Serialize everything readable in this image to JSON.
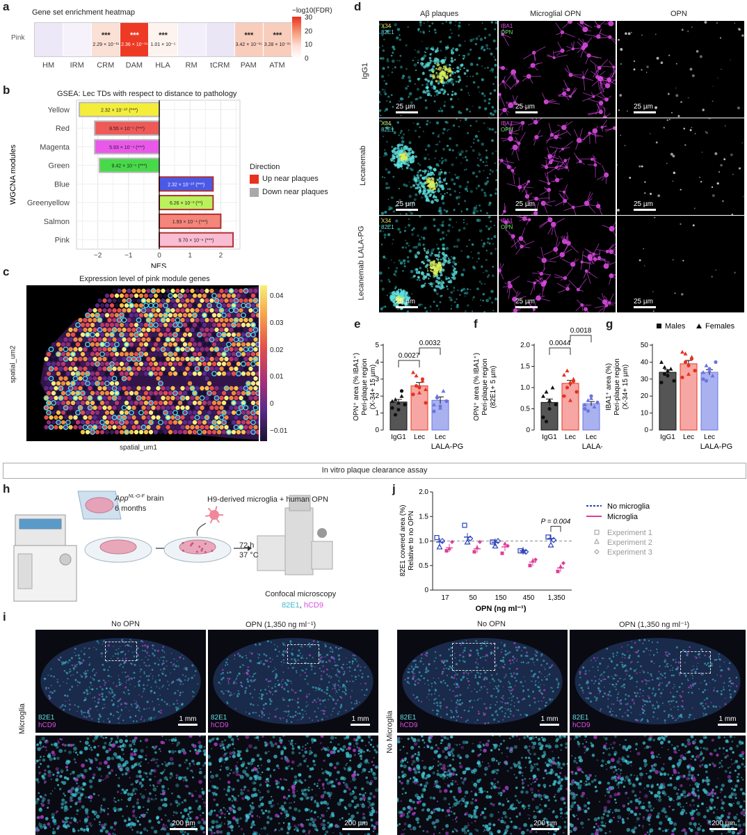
{
  "panels": {
    "a": "a",
    "b": "b",
    "c": "c",
    "d": "d",
    "e": "e",
    "f": "f",
    "g": "g",
    "h": "h",
    "i": "i",
    "j": "j"
  },
  "heatmap": {
    "title": "Gene set enrichment heatmap",
    "row_label": "Pink",
    "colorbar_title": "−log10(FDR)",
    "colorbar_ticks": [
      "30",
      "20",
      "10",
      "0"
    ],
    "columns": [
      {
        "name": "HM",
        "stars": "",
        "fdr": "",
        "color": "#ede8f7"
      },
      {
        "name": "IRM",
        "stars": "",
        "fdr": "",
        "color": "#f5f2fb"
      },
      {
        "name": "CRM",
        "stars": "***",
        "fdr": "2.29 × 10⁻¹¹",
        "color": "#fbe0d6"
      },
      {
        "name": "DAM",
        "stars": "***",
        "fdr": "2.36 × 10⁻³⁴",
        "color": "#ee3a24"
      },
      {
        "name": "HLA",
        "stars": "***",
        "fdr": "1.01 × 10⁻⁵",
        "color": "#fdf3ef"
      },
      {
        "name": "RM",
        "stars": "",
        "fdr": "",
        "color": "#f3effa"
      },
      {
        "name": "tCRM",
        "stars": "",
        "fdr": "",
        "color": "#ebe6f6"
      },
      {
        "name": "PAM",
        "stars": "***",
        "fdr": "3.42 × 10⁻¹⁵",
        "color": "#f9cdbc"
      },
      {
        "name": "ATM",
        "stars": "***",
        "fdr": "3.28 × 10⁻¹⁵",
        "color": "#f9cdbc"
      }
    ]
  },
  "gsea": {
    "title": "GSEA: Lec TDs with respect to distance to pathology",
    "ylabel": "WGCNA modules",
    "xlabel": "NES",
    "xticks": [
      "−2",
      "−1",
      "0",
      "1",
      "2"
    ],
    "legend_title": "Direction",
    "legend": [
      {
        "label": "Up near plaques",
        "color": "#e8321e"
      },
      {
        "label": "Down near plaques",
        "color": "#a9a9a9"
      }
    ],
    "modules": [
      {
        "name": "Yellow",
        "nes": -2.6,
        "label": "2.32 × 10⁻¹⁰ (***)",
        "fill": "#f4ee3a",
        "border": "#b8b8b8"
      },
      {
        "name": "Red",
        "nes": -2.1,
        "label": "8.55 × 10⁻⁵ (***)",
        "fill": "#ee5a58",
        "border": "#b8b8b8"
      },
      {
        "name": "Magenta",
        "nes": -2.1,
        "label": "5.93 × 10⁻⁴ (***)",
        "fill": "#ea58ea",
        "border": "#b8b8b8"
      },
      {
        "name": "Green",
        "nes": -1.95,
        "label": "9.42 × 10⁻⁵ (***)",
        "fill": "#48d94a",
        "border": "#b8b8b8"
      },
      {
        "name": "Blue",
        "nes": 1.75,
        "label": "2.32 × 10⁻¹⁰ (***)",
        "fill": "#4a5ae6",
        "border": "#b03030"
      },
      {
        "name": "Greenyellow",
        "nes": 1.75,
        "label": "6.26 × 10⁻³ (**)",
        "fill": "#b9f25c",
        "border": "#b03030"
      },
      {
        "name": "Salmon",
        "nes": 2.0,
        "label": "1.93 × 10⁻⁴ (***)",
        "fill": "#f4857a",
        "border": "#b03030"
      },
      {
        "name": "Pink",
        "nes": 2.4,
        "label": "9.70 × 10⁻⁶ (***)",
        "fill": "#f9bcd2",
        "border": "#b03030"
      }
    ]
  },
  "spatial": {
    "title": "Expression level of pink module genes",
    "xlabel": "spatial_um1",
    "ylabel": "spatial_um2",
    "colorbar_ticks": [
      "0.04",
      "0.03",
      "0.02",
      "0.01",
      "0",
      "−0.01"
    ]
  },
  "microscopy_d": {
    "columns": [
      "Aβ plaques",
      "Microglial OPN",
      "OPN"
    ],
    "rows": [
      "IgG1",
      "Lecanemab",
      "Lecanemab LALA-PG"
    ],
    "chan1a": "X34",
    "chan1b": "82E1",
    "chan2a": "IBA1",
    "chan2b": "OPN",
    "scalebar": "25 µm"
  },
  "bars": {
    "e": {
      "ylabel1": "OPN⁺ area (% IBA1⁺)",
      "ylabel2": "Peri-plaque region",
      "ylabel3": "(X-34+ 15 µm)",
      "yticks": [
        "0",
        "1",
        "2",
        "3",
        "4",
        "5"
      ],
      "pvals": [
        "0.0027",
        "0.0032"
      ],
      "groups": [
        "IgG1",
        "Lec",
        "Lec"
      ],
      "sub": "LALA-PG"
    },
    "f": {
      "ylabel1": "OPN⁺ area (% IBA1⁺)",
      "ylabel2": "Peri-plaque region",
      "ylabel3": "(82E1+ 5 µm)",
      "yticks": [
        "0",
        "0.5",
        "1.0",
        "1.5",
        "2.0"
      ],
      "pvals": [
        "0.0044",
        "0.0018"
      ],
      "groups": [
        "IgG1",
        "Lec",
        "Lec"
      ],
      "sub": "LALA-PG"
    },
    "g": {
      "ylabel1": "IBA1⁺ area (%)",
      "ylabel2": "Peri-plaque region",
      "ylabel3": "(X-34+ 15 µm)",
      "yticks": [
        "0",
        "10",
        "20",
        "30",
        "40",
        "50"
      ],
      "groups": [
        "IgG1",
        "Lec",
        "Lec"
      ],
      "sub": "LALA-PG",
      "legend_males": "Males",
      "legend_females": "Females"
    }
  },
  "banner": "In vitro plaque clearance assay",
  "schematic": {
    "mouse_line": "App",
    "mouse_sup": "NL-G-F",
    "mouse_rest": " brain",
    "age": "6 months",
    "cells": "H9-derived microglia + human OPN",
    "time": "72 h",
    "temp": "37 °C",
    "microscopy": "Confocal microscopy",
    "stain1": "82E1",
    "stain_sep": ", ",
    "stain2": "hCD9"
  },
  "chart_data": {
    "type": "scatter",
    "title": "",
    "xlabel": "OPN (ng ml⁻¹)",
    "ylabel": "82E1 covered area (%) Relative to no OPN",
    "categories": [
      "17",
      "50",
      "150",
      "450",
      "1,350"
    ],
    "ylim": [
      0,
      2.0
    ],
    "yticks": [
      "0",
      "0.5",
      "1.0",
      "1.5",
      "2.0"
    ],
    "annotation": "P = 0.004",
    "legend": [
      "No microglia",
      "Microglia",
      "Experiment 1",
      "Experiment 2",
      "Experiment 3"
    ],
    "series": [
      {
        "name": "No microglia",
        "color": "#2a3fb8",
        "means": [
          0.98,
          1.08,
          0.97,
          0.8,
          1.05
        ],
        "points": [
          [
            1.07,
            0.88,
            1.0
          ],
          [
            1.32,
            0.98,
            1.05
          ],
          [
            0.98,
            0.9,
            1.0
          ],
          [
            0.8,
            0.8,
            0.78
          ],
          [
            1.08,
            0.92,
            1.02
          ]
        ]
      },
      {
        "name": "Microglia",
        "color": "#e03c97",
        "means": [
          0.86,
          0.84,
          0.88,
          0.57,
          0.45
        ],
        "points": [
          [
            0.8,
            0.85,
            0.98
          ],
          [
            0.78,
            0.87,
            0.98
          ],
          [
            0.75,
            0.95,
            0.9
          ],
          [
            0.5,
            0.6,
            0.62
          ],
          [
            0.38,
            0.48,
            0.55
          ]
        ]
      }
    ]
  },
  "panel_i": {
    "left_cols": [
      "No OPN",
      "OPN (1,350 ng ml⁻¹)"
    ],
    "right_cols": [
      "No OPN",
      "OPN (1,350 ng ml⁻¹)"
    ],
    "row_left": "Microglia",
    "row_right": "No Microglia",
    "chan_a": "82E1",
    "chan_b": "hCD9",
    "scale_top": "1 mm",
    "scale_bottom": "200 µm"
  },
  "colors": {
    "cyan": "#3fd0d8",
    "magenta": "#e04ce6",
    "green": "#66ee66",
    "accent_red": "#e8321e"
  }
}
